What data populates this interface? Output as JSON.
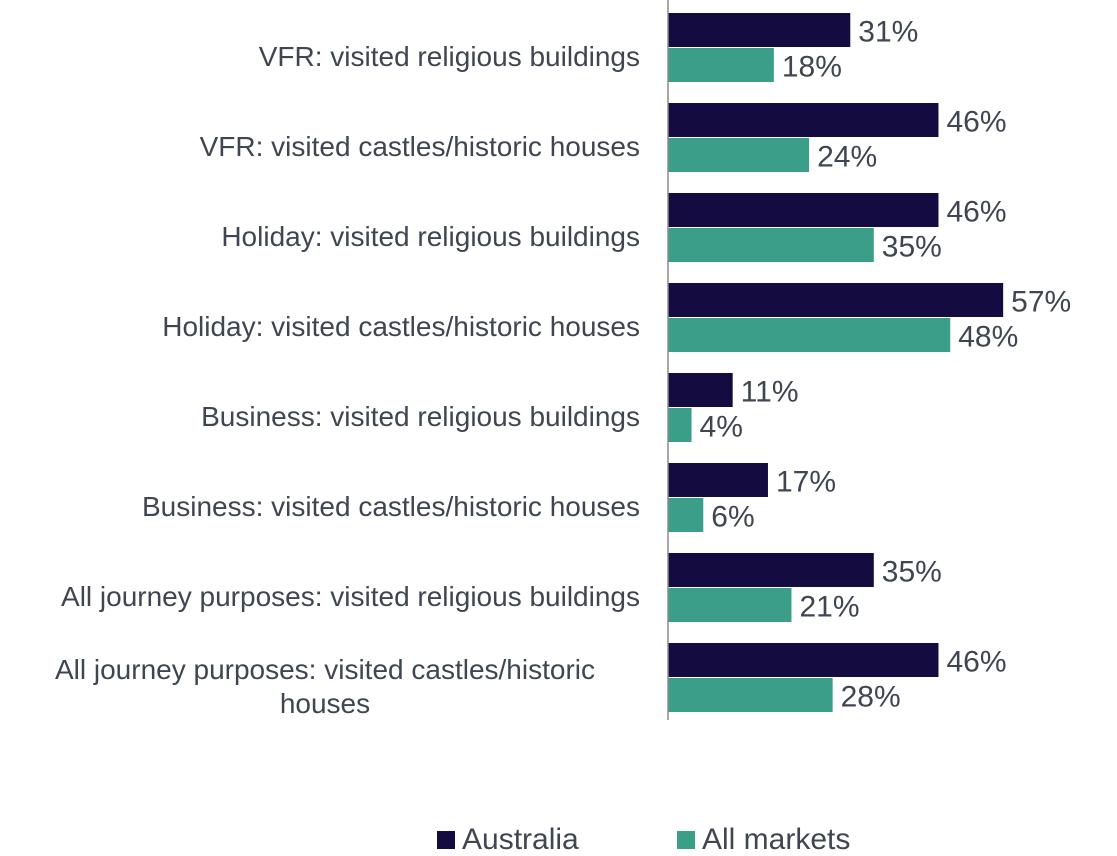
{
  "chart_data": {
    "type": "bar",
    "orientation": "horizontal",
    "categories": [
      "VFR: visited religious buildings",
      "VFR: visited castles/historic houses",
      "Holiday: visited religious buildings",
      "Holiday: visited castles/historic houses",
      "Business: visited religious buildings",
      "Business: visited castles/historic houses",
      "All journey purposes: visited religious buildings",
      "All journey purposes: visited castles/historic houses"
    ],
    "series": [
      {
        "name": "Australia",
        "color": "#140c40",
        "values": [
          31,
          46,
          46,
          57,
          11,
          17,
          35,
          46
        ],
        "value_labels": [
          "31%",
          "46%",
          "46%",
          "57%",
          "11%",
          "17%",
          "35%",
          "46%"
        ]
      },
      {
        "name": "All markets",
        "color": "#3a9e88",
        "values": [
          18,
          24,
          35,
          48,
          4,
          6,
          21,
          28
        ],
        "value_labels": [
          "18%",
          "24%",
          "35%",
          "48%",
          "4%",
          "6%",
          "21%",
          "28%"
        ]
      }
    ],
    "legend": "bottom"
  }
}
